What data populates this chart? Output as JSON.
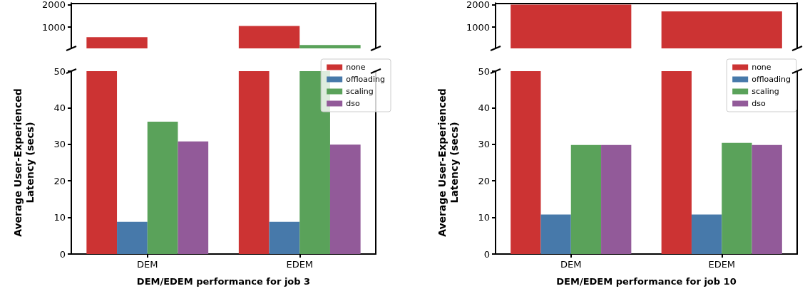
{
  "chart_data": [
    {
      "type": "bar",
      "categories": [
        null,
        null
      ],
      "series": [
        {
          "color": "#cc3333",
          "values": [
            550,
            1050
          ]
        },
        {
          "color": "#5aa25a",
          "values": [
            null,
            200
          ]
        }
      ],
      "ylim": [
        50,
        2070
      ],
      "yticks": [
        1000,
        2000
      ],
      "tick_labels": "y"
    },
    {
      "type": "bar",
      "categories": [
        null,
        null
      ],
      "series": [
        {
          "color": "#cc3333",
          "values": [
            2000,
            1700
          ]
        }
      ],
      "ylim": [
        50,
        2070
      ],
      "yticks": [
        1000,
        2000
      ],
      "tick_labels": "y"
    },
    {
      "type": "bar",
      "categories": [
        "DEM",
        "EDEM"
      ],
      "series": [
        {
          "name": "none",
          "color": "#cc3333",
          "values": [
            50,
            50
          ]
        },
        {
          "name": "offloading",
          "color": "#4779aa",
          "values": [
            8.8,
            8.8
          ]
        },
        {
          "name": "scaling",
          "color": "#5aa25a",
          "values": [
            36.2,
            50
          ]
        },
        {
          "name": "dso",
          "color": "#925a99",
          "values": [
            30.8,
            29.9
          ]
        }
      ],
      "ylim": [
        0,
        50
      ],
      "yticks": [
        0,
        10,
        20,
        30,
        40,
        50
      ],
      "xlabel": "DEM/EDEM performance for job 3",
      "ylabel": "Average User-Experienced\nLatency (secs)",
      "legend": "top right"
    },
    {
      "type": "bar",
      "categories": [
        "DEM",
        "EDEM"
      ],
      "series": [
        {
          "name": "none",
          "color": "#cc3333",
          "values": [
            50,
            50
          ]
        },
        {
          "name": "offloading",
          "color": "#4779aa",
          "values": [
            10.8,
            10.8
          ]
        },
        {
          "name": "scaling",
          "color": "#5aa25a",
          "values": [
            29.8,
            30.4
          ]
        },
        {
          "name": "dso",
          "color": "#925a99",
          "values": [
            29.8,
            29.8
          ]
        }
      ],
      "ylim": [
        0,
        50
      ],
      "yticks": [
        0,
        10,
        20,
        30,
        40,
        50
      ],
      "xlabel": "DEM/EDEM performance for job 10",
      "ylabel": "Average User-Experienced\nLatency (secs)",
      "legend": "top right"
    }
  ]
}
